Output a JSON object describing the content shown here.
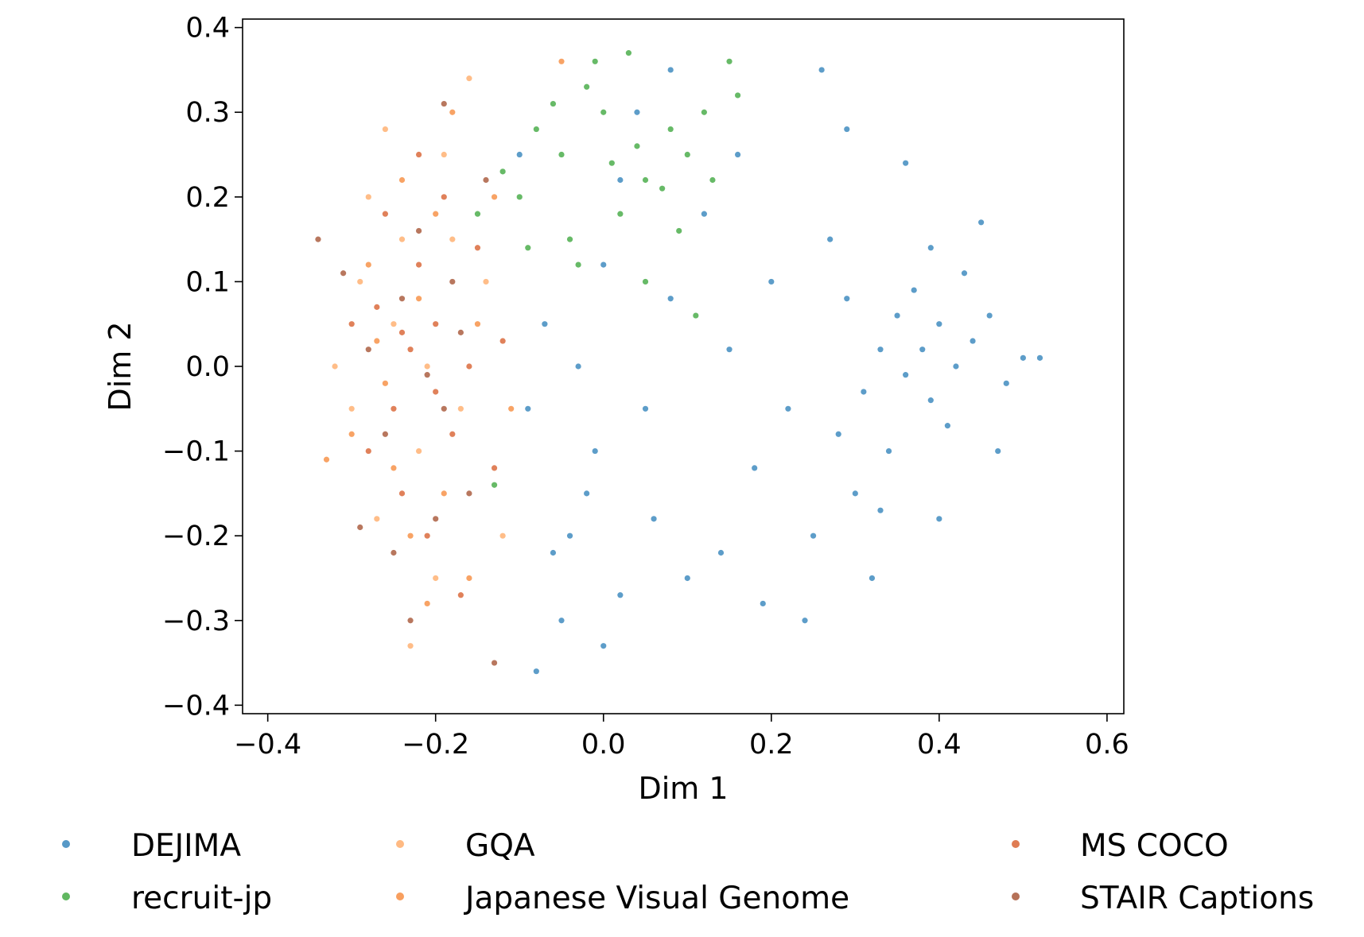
{
  "chart_data": {
    "type": "scatter",
    "title": "",
    "xlabel": "Dim 1",
    "ylabel": "Dim 2",
    "xlim": [
      -0.43,
      0.62
    ],
    "ylim": [
      -0.41,
      0.41
    ],
    "xticks": [
      -0.4,
      -0.2,
      0.0,
      0.2,
      0.4,
      0.6
    ],
    "xtick_labels": [
      "−0.4",
      "−0.2",
      "0.0",
      "0.2",
      "0.4",
      "0.6"
    ],
    "yticks": [
      0.4,
      0.3,
      0.2,
      0.1,
      0.0,
      -0.1,
      -0.2,
      -0.3,
      -0.4
    ],
    "ytick_labels": [
      "0.4",
      "0.3",
      "0.2",
      "0.1",
      "0.0",
      "−0.1",
      "−0.2",
      "−0.3",
      "−0.4"
    ],
    "grid": false,
    "legend_placement": "bottom, outside plot, 3 columns",
    "series": [
      {
        "name": "DEJIMA",
        "color": "#1f77b4",
        "points": [
          [
            0.38,
            0.02
          ],
          [
            0.4,
            0.05
          ],
          [
            0.36,
            -0.01
          ],
          [
            0.42,
            0.0
          ],
          [
            0.35,
            0.06
          ],
          [
            0.39,
            -0.04
          ],
          [
            0.44,
            0.03
          ],
          [
            0.33,
            0.02
          ],
          [
            0.37,
            0.09
          ],
          [
            0.41,
            -0.07
          ],
          [
            0.46,
            0.06
          ],
          [
            0.31,
            -0.03
          ],
          [
            0.48,
            -0.02
          ],
          [
            0.34,
            -0.1
          ],
          [
            0.43,
            0.11
          ],
          [
            0.5,
            0.01
          ],
          [
            0.29,
            0.08
          ],
          [
            0.52,
            0.01
          ],
          [
            0.3,
            -0.15
          ],
          [
            0.27,
            0.15
          ],
          [
            0.25,
            -0.2
          ],
          [
            0.22,
            -0.05
          ],
          [
            0.2,
            0.1
          ],
          [
            0.18,
            -0.12
          ],
          [
            0.15,
            0.02
          ],
          [
            0.12,
            0.18
          ],
          [
            0.1,
            -0.25
          ],
          [
            0.08,
            0.08
          ],
          [
            0.05,
            -0.05
          ],
          [
            0.02,
            0.22
          ],
          [
            0.0,
            0.12
          ],
          [
            -0.02,
            -0.15
          ],
          [
            -0.04,
            -0.2
          ],
          [
            -0.06,
            -0.22
          ],
          [
            -0.01,
            -0.1
          ],
          [
            0.02,
            -0.27
          ],
          [
            -0.05,
            -0.3
          ],
          [
            -0.08,
            -0.36
          ],
          [
            0.0,
            -0.33
          ],
          [
            -0.09,
            -0.05
          ],
          [
            -0.07,
            0.05
          ],
          [
            -0.1,
            0.25
          ],
          [
            0.04,
            0.3
          ],
          [
            0.08,
            0.35
          ],
          [
            0.26,
            0.35
          ],
          [
            0.24,
            -0.3
          ],
          [
            0.32,
            -0.25
          ],
          [
            0.4,
            -0.18
          ],
          [
            0.47,
            -0.1
          ],
          [
            0.45,
            0.17
          ],
          [
            0.36,
            0.24
          ],
          [
            0.29,
            0.28
          ],
          [
            0.16,
            0.25
          ],
          [
            0.14,
            -0.22
          ],
          [
            0.06,
            -0.18
          ],
          [
            -0.03,
            0.0
          ],
          [
            0.19,
            -0.28
          ],
          [
            0.39,
            0.14
          ],
          [
            0.33,
            -0.17
          ],
          [
            0.28,
            -0.08
          ]
        ]
      },
      {
        "name": "recruit-jp",
        "color": "#2ca02c",
        "points": [
          [
            0.0,
            0.3
          ],
          [
            0.03,
            0.37
          ],
          [
            -0.05,
            0.25
          ],
          [
            0.05,
            0.22
          ],
          [
            -0.1,
            0.2
          ],
          [
            0.08,
            0.28
          ],
          [
            -0.02,
            0.33
          ],
          [
            0.12,
            0.3
          ],
          [
            -0.08,
            0.28
          ],
          [
            0.02,
            0.18
          ],
          [
            0.07,
            0.21
          ],
          [
            -0.12,
            0.23
          ],
          [
            -0.04,
            0.15
          ],
          [
            0.1,
            0.25
          ],
          [
            0.15,
            0.36
          ],
          [
            -0.01,
            0.36
          ],
          [
            0.04,
            0.26
          ],
          [
            -0.06,
            0.31
          ],
          [
            0.16,
            0.32
          ],
          [
            -0.15,
            0.18
          ],
          [
            0.11,
            0.06
          ],
          [
            -0.13,
            -0.14
          ],
          [
            0.05,
            0.1
          ],
          [
            -0.03,
            0.12
          ],
          [
            0.09,
            0.16
          ],
          [
            -0.09,
            0.14
          ],
          [
            0.13,
            0.22
          ],
          [
            0.01,
            0.24
          ]
        ]
      },
      {
        "name": "GQA",
        "color": "#ffa35a",
        "points": [
          [
            -0.25,
            0.05
          ],
          [
            -0.28,
            0.2
          ],
          [
            -0.22,
            -0.1
          ],
          [
            -0.3,
            -0.05
          ],
          [
            -0.18,
            0.15
          ],
          [
            -0.26,
            0.28
          ],
          [
            -0.2,
            -0.25
          ],
          [
            -0.16,
            0.34
          ],
          [
            -0.32,
            0.0
          ],
          [
            -0.23,
            -0.33
          ],
          [
            -0.14,
            0.1
          ],
          [
            -0.27,
            -0.18
          ],
          [
            -0.19,
            0.25
          ],
          [
            -0.29,
            0.1
          ],
          [
            -0.21,
            0.0
          ],
          [
            -0.12,
            -0.2
          ],
          [
            -0.24,
            0.15
          ],
          [
            -0.17,
            -0.05
          ]
        ]
      },
      {
        "name": "Japanese Visual Genome",
        "color": "#f57f2a",
        "points": [
          [
            -0.22,
            0.08
          ],
          [
            -0.26,
            -0.02
          ],
          [
            -0.19,
            -0.15
          ],
          [
            -0.24,
            0.22
          ],
          [
            -0.15,
            0.05
          ],
          [
            -0.28,
            0.12
          ],
          [
            -0.21,
            -0.28
          ],
          [
            -0.13,
            0.2
          ],
          [
            -0.05,
            0.36
          ],
          [
            -0.3,
            -0.08
          ],
          [
            -0.18,
            0.3
          ],
          [
            -0.23,
            -0.2
          ],
          [
            -0.11,
            -0.05
          ],
          [
            -0.16,
            -0.25
          ],
          [
            -0.27,
            0.03
          ],
          [
            -0.2,
            0.18
          ],
          [
            -0.33,
            -0.11
          ],
          [
            -0.25,
            -0.12
          ]
        ]
      },
      {
        "name": "MS COCO",
        "color": "#d4501a",
        "points": [
          [
            -0.23,
            0.02
          ],
          [
            -0.2,
            0.05
          ],
          [
            -0.25,
            -0.05
          ],
          [
            -0.18,
            -0.08
          ],
          [
            -0.22,
            0.12
          ],
          [
            -0.27,
            0.07
          ],
          [
            -0.19,
            0.2
          ],
          [
            -0.24,
            -0.15
          ],
          [
            -0.16,
            0.0
          ],
          [
            -0.21,
            -0.2
          ],
          [
            -0.28,
            -0.1
          ],
          [
            -0.15,
            0.14
          ],
          [
            -0.26,
            0.18
          ],
          [
            -0.13,
            -0.12
          ],
          [
            -0.3,
            0.05
          ],
          [
            -0.17,
            -0.27
          ],
          [
            -0.22,
            0.25
          ],
          [
            -0.2,
            -0.03
          ],
          [
            -0.24,
            0.04
          ],
          [
            -0.12,
            0.03
          ]
        ]
      },
      {
        "name": "STAIR Captions",
        "color": "#9c4220",
        "points": [
          [
            -0.21,
            -0.01
          ],
          [
            -0.24,
            0.08
          ],
          [
            -0.19,
            -0.05
          ],
          [
            -0.26,
            -0.08
          ],
          [
            -0.22,
            0.16
          ],
          [
            -0.18,
            0.1
          ],
          [
            -0.28,
            0.02
          ],
          [
            -0.2,
            -0.18
          ],
          [
            -0.25,
            -0.22
          ],
          [
            -0.16,
            -0.15
          ],
          [
            -0.31,
            0.11
          ],
          [
            -0.34,
            0.15
          ],
          [
            -0.14,
            0.22
          ],
          [
            -0.19,
            0.31
          ],
          [
            -0.23,
            -0.3
          ],
          [
            -0.29,
            -0.19
          ],
          [
            -0.17,
            0.04
          ],
          [
            -0.13,
            -0.35
          ]
        ]
      }
    ]
  }
}
